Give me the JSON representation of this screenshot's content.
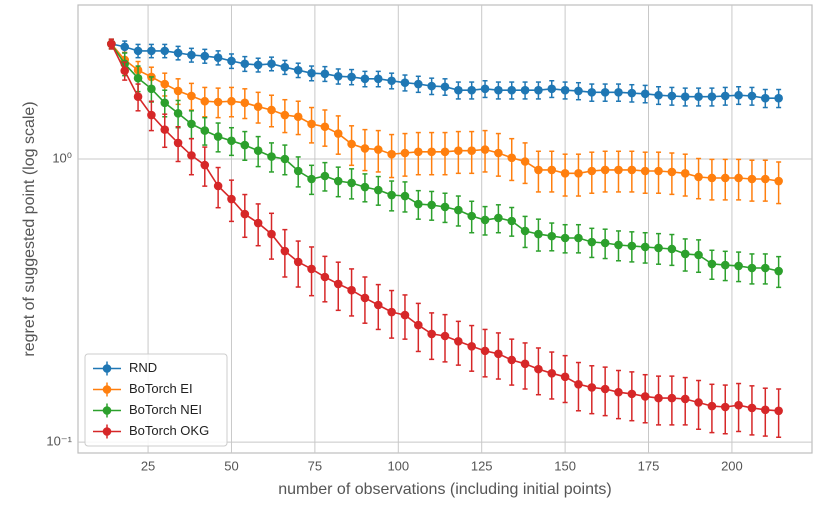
{
  "chart_data": {
    "type": "line",
    "xlabel": "number of observations (including initial points)",
    "ylabel": "regret of suggested point (log scale)",
    "x": [
      14,
      18,
      22,
      26,
      30,
      34,
      38,
      42,
      46,
      50,
      54,
      58,
      62,
      66,
      70,
      74,
      78,
      82,
      86,
      90,
      94,
      98,
      102,
      106,
      110,
      114,
      118,
      122,
      126,
      130,
      134,
      138,
      142,
      146,
      150,
      154,
      158,
      162,
      166,
      170,
      174,
      178,
      182,
      186,
      190,
      194,
      198,
      202,
      206,
      210,
      214
    ],
    "xlim": [
      4,
      224
    ],
    "xticks": [
      25,
      50,
      75,
      100,
      125,
      150,
      175,
      200
    ],
    "ylim": [
      0.0915,
      3.5
    ],
    "ylog": true,
    "yticks": [
      {
        "value": 0.1,
        "label": "10⁻¹"
      },
      {
        "value": 1,
        "label": "10⁰"
      }
    ],
    "grid": true,
    "legend": "lower left",
    "series": [
      {
        "name": "RND",
        "color": "#1f77b4",
        "values": [
          2.55,
          2.49,
          2.41,
          2.41,
          2.41,
          2.37,
          2.33,
          2.31,
          2.28,
          2.22,
          2.17,
          2.15,
          2.17,
          2.11,
          2.06,
          2.01,
          2.0,
          1.96,
          1.95,
          1.92,
          1.92,
          1.89,
          1.86,
          1.84,
          1.81,
          1.8,
          1.75,
          1.75,
          1.77,
          1.75,
          1.75,
          1.75,
          1.75,
          1.77,
          1.75,
          1.74,
          1.72,
          1.72,
          1.72,
          1.71,
          1.7,
          1.68,
          1.67,
          1.66,
          1.66,
          1.66,
          1.67,
          1.68,
          1.67,
          1.64,
          1.64
        ],
        "err": [
          0.1,
          0.12,
          0.13,
          0.13,
          0.13,
          0.13,
          0.13,
          0.13,
          0.13,
          0.13,
          0.13,
          0.12,
          0.12,
          0.12,
          0.12,
          0.12,
          0.12,
          0.12,
          0.12,
          0.12,
          0.12,
          0.12,
          0.12,
          0.12,
          0.12,
          0.12,
          0.12,
          0.12,
          0.12,
          0.12,
          0.12,
          0.12,
          0.12,
          0.12,
          0.12,
          0.12,
          0.12,
          0.12,
          0.12,
          0.12,
          0.12,
          0.12,
          0.12,
          0.12,
          0.12,
          0.12,
          0.12,
          0.12,
          0.12,
          0.12,
          0.12
        ]
      },
      {
        "name": "BoTorch EI",
        "color": "#ff7f0e",
        "values": [
          2.55,
          2.24,
          2.06,
          1.95,
          1.84,
          1.74,
          1.67,
          1.6,
          1.59,
          1.6,
          1.58,
          1.53,
          1.49,
          1.43,
          1.41,
          1.33,
          1.3,
          1.23,
          1.13,
          1.09,
          1.08,
          1.04,
          1.05,
          1.06,
          1.06,
          1.06,
          1.07,
          1.07,
          1.08,
          1.05,
          1.01,
          0.98,
          0.915,
          0.915,
          0.89,
          0.89,
          0.907,
          0.915,
          0.915,
          0.915,
          0.907,
          0.907,
          0.9,
          0.89,
          0.864,
          0.857,
          0.857,
          0.857,
          0.85,
          0.85,
          0.836
        ],
        "err": [
          0.1,
          0.14,
          0.15,
          0.16,
          0.17,
          0.18,
          0.18,
          0.19,
          0.19,
          0.19,
          0.19,
          0.19,
          0.19,
          0.19,
          0.19,
          0.19,
          0.19,
          0.19,
          0.18,
          0.18,
          0.18,
          0.18,
          0.18,
          0.18,
          0.18,
          0.18,
          0.18,
          0.18,
          0.18,
          0.18,
          0.17,
          0.16,
          0.15,
          0.15,
          0.15,
          0.15,
          0.15,
          0.15,
          0.15,
          0.15,
          0.15,
          0.15,
          0.15,
          0.15,
          0.14,
          0.14,
          0.14,
          0.14,
          0.14,
          0.14,
          0.14
        ]
      },
      {
        "name": "BoTorch NEI",
        "color": "#2ca02c",
        "values": [
          2.55,
          2.17,
          1.93,
          1.77,
          1.58,
          1.45,
          1.33,
          1.26,
          1.2,
          1.16,
          1.12,
          1.07,
          1.02,
          1.0,
          0.907,
          0.85,
          0.871,
          0.836,
          0.823,
          0.796,
          0.777,
          0.746,
          0.74,
          0.693,
          0.688,
          0.677,
          0.66,
          0.629,
          0.609,
          0.619,
          0.604,
          0.557,
          0.543,
          0.534,
          0.526,
          0.526,
          0.509,
          0.505,
          0.497,
          0.493,
          0.489,
          0.485,
          0.481,
          0.462,
          0.458,
          0.426,
          0.422,
          0.419,
          0.412,
          0.412,
          0.402
        ],
        "err": [
          0.1,
          0.2,
          0.2,
          0.18,
          0.17,
          0.16,
          0.15,
          0.14,
          0.14,
          0.13,
          0.13,
          0.13,
          0.12,
          0.12,
          0.11,
          0.1,
          0.1,
          0.1,
          0.1,
          0.09,
          0.09,
          0.09,
          0.09,
          0.08,
          0.08,
          0.08,
          0.08,
          0.08,
          0.07,
          0.07,
          0.07,
          0.07,
          0.07,
          0.06,
          0.06,
          0.06,
          0.06,
          0.06,
          0.06,
          0.06,
          0.06,
          0.06,
          0.06,
          0.06,
          0.06,
          0.05,
          0.05,
          0.05,
          0.05,
          0.05,
          0.05
        ]
      },
      {
        "name": "BoTorch OKG",
        "color": "#d62728",
        "values": [
          2.55,
          2.05,
          1.66,
          1.43,
          1.27,
          1.14,
          1.03,
          0.952,
          0.803,
          0.722,
          0.639,
          0.594,
          0.543,
          0.473,
          0.433,
          0.409,
          0.383,
          0.362,
          0.344,
          0.323,
          0.305,
          0.288,
          0.281,
          0.259,
          0.241,
          0.237,
          0.227,
          0.218,
          0.21,
          0.205,
          0.195,
          0.189,
          0.181,
          0.175,
          0.17,
          0.16,
          0.156,
          0.154,
          0.15,
          0.148,
          0.145,
          0.143,
          0.143,
          0.142,
          0.138,
          0.134,
          0.133,
          0.135,
          0.132,
          0.13,
          0.129
        ],
        "err": [
          0.1,
          0.15,
          0.18,
          0.17,
          0.17,
          0.16,
          0.15,
          0.15,
          0.13,
          0.12,
          0.11,
          0.1,
          0.1,
          0.09,
          0.08,
          0.08,
          0.07,
          0.07,
          0.065,
          0.06,
          0.055,
          0.055,
          0.05,
          0.05,
          0.045,
          0.045,
          0.04,
          0.04,
          0.04,
          0.038,
          0.036,
          0.035,
          0.034,
          0.033,
          0.032,
          0.031,
          0.03,
          0.03,
          0.029,
          0.029,
          0.028,
          0.028,
          0.028,
          0.027,
          0.027,
          0.026,
          0.026,
          0.026,
          0.026,
          0.025,
          0.025
        ]
      }
    ]
  }
}
